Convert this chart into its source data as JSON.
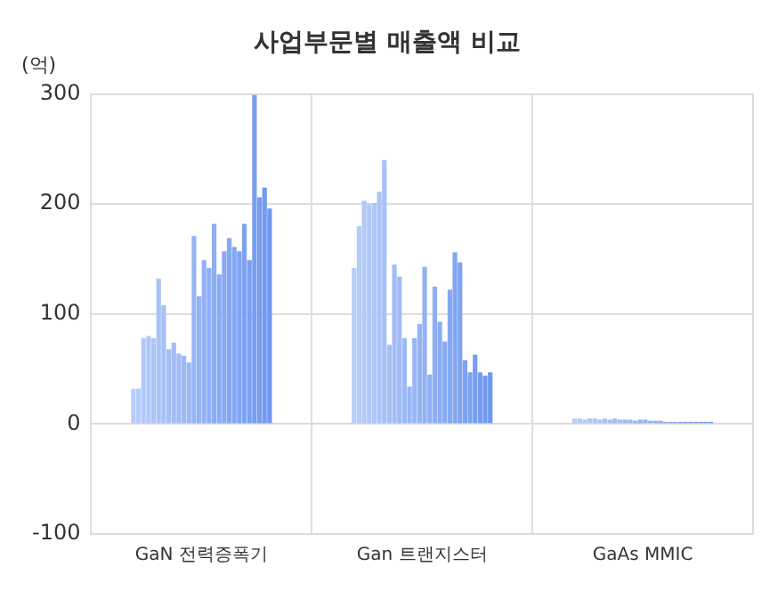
{
  "chart_data": {
    "type": "bar",
    "title": "사업부문별 매출액 비교",
    "ylabel": "(억)",
    "categories": [
      "GaN 전력증폭기",
      "Gan 트랜지스터",
      "GaAs MMIC"
    ],
    "ylim": [
      -100,
      300
    ],
    "yticks": [
      -100,
      0,
      100,
      200,
      300
    ],
    "grid": true,
    "legend": false,
    "series": [
      {
        "color": "#b8cdf8",
        "values": [
          32,
          142,
          5
        ]
      },
      {
        "color": "#b5cbf8",
        "values": [
          32,
          180,
          5
        ]
      },
      {
        "color": "#b3c9f8",
        "values": [
          78,
          203,
          4
        ]
      },
      {
        "color": "#b0c7f8",
        "values": [
          80,
          200,
          5
        ]
      },
      {
        "color": "#adc5f7",
        "values": [
          78,
          201,
          5
        ]
      },
      {
        "color": "#aac3f7",
        "values": [
          132,
          211,
          4
        ]
      },
      {
        "color": "#a8c1f6",
        "values": [
          108,
          240,
          5
        ]
      },
      {
        "color": "#a5bff6",
        "values": [
          68,
          72,
          4
        ]
      },
      {
        "color": "#a2bdf6",
        "values": [
          74,
          145,
          5
        ]
      },
      {
        "color": "#a0bbf6",
        "values": [
          64,
          134,
          4
        ]
      },
      {
        "color": "#9db9f5",
        "values": [
          62,
          78,
          4
        ]
      },
      {
        "color": "#9ab7f5",
        "values": [
          56,
          34,
          4
        ]
      },
      {
        "color": "#98b5f5",
        "values": [
          171,
          78,
          3
        ]
      },
      {
        "color": "#95b4f4",
        "values": [
          116,
          91,
          4
        ]
      },
      {
        "color": "#92b2f4",
        "values": [
          149,
          143,
          4
        ]
      },
      {
        "color": "#8fb0f4",
        "values": [
          142,
          45,
          3
        ]
      },
      {
        "color": "#8daef3",
        "values": [
          182,
          125,
          3
        ]
      },
      {
        "color": "#8aacf3",
        "values": [
          136,
          93,
          3
        ]
      },
      {
        "color": "#87aaf3",
        "values": [
          157,
          75,
          2
        ]
      },
      {
        "color": "#85a8f3",
        "values": [
          169,
          122,
          2
        ]
      },
      {
        "color": "#82a6f2",
        "values": [
          161,
          156,
          2
        ]
      },
      {
        "color": "#7fa4f2",
        "values": [
          157,
          147,
          2
        ]
      },
      {
        "color": "#7da2f2",
        "values": [
          182,
          58,
          2
        ]
      },
      {
        "color": "#7aa0f1",
        "values": [
          149,
          47,
          2
        ]
      },
      {
        "color": "#779ef1",
        "values": [
          299,
          63,
          2
        ]
      },
      {
        "color": "#759cf1",
        "values": [
          206,
          47,
          2
        ]
      },
      {
        "color": "#729af0",
        "values": [
          215,
          44,
          2
        ]
      },
      {
        "color": "#6f98f0",
        "values": [
          196,
          47,
          2
        ]
      }
    ]
  }
}
